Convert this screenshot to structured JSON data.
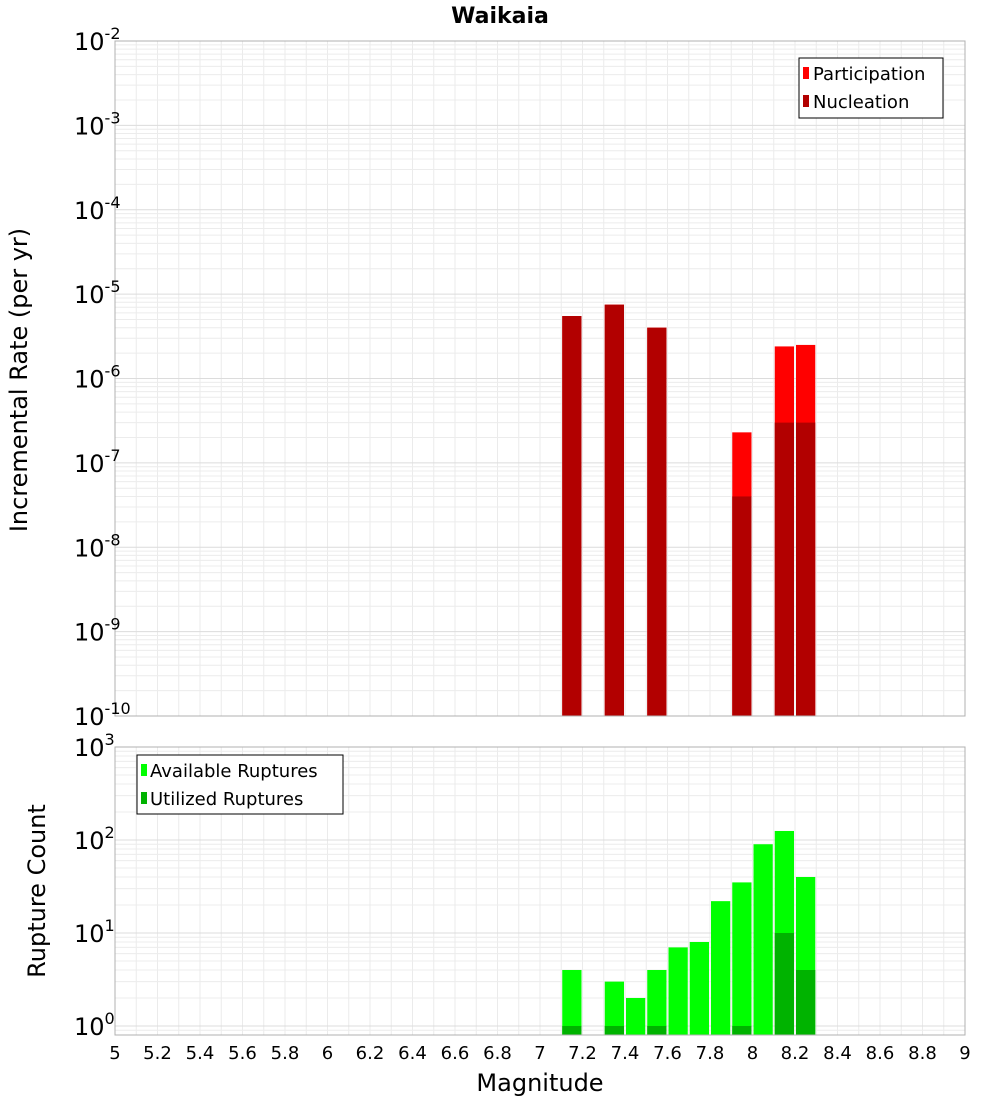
{
  "chart_data": [
    {
      "type": "bar",
      "title": "Waikaia",
      "xlabel": "Magnitude",
      "ylabel": "Incremental Rate (per yr)",
      "yscale": "log",
      "xlim": [
        5,
        9
      ],
      "ylim": [
        1e-10,
        0.01
      ],
      "ytick_base": "10",
      "ytick_exponents": [
        "-10",
        "-9",
        "-8",
        "-7",
        "-6",
        "-5",
        "-4",
        "-3",
        "-2"
      ],
      "grid": true,
      "legend_position": "top-right",
      "colors": {
        "Participation": "#ff0000",
        "Nucleation": "#b20000"
      },
      "x": [
        7.15,
        7.35,
        7.55,
        7.95,
        8.15,
        8.25
      ],
      "series": [
        {
          "name": "Participation",
          "values": [
            5.5e-06,
            7.5e-06,
            4e-06,
            2.3e-07,
            2.4e-06,
            2.5e-06
          ]
        },
        {
          "name": "Nucleation",
          "values": [
            5.5e-06,
            7.5e-06,
            4e-06,
            4e-08,
            3e-07,
            3e-07
          ]
        }
      ]
    },
    {
      "type": "bar",
      "xlabel": "Magnitude",
      "ylabel": "Rupture Count",
      "yscale": "log",
      "xlim": [
        5,
        9
      ],
      "ylim": [
        0.8,
        1000
      ],
      "ytick_base": "10",
      "ytick_exponents": [
        "0",
        "1",
        "2",
        "3"
      ],
      "xticks": [
        "5",
        "5.2",
        "5.4",
        "5.6",
        "5.8",
        "6",
        "6.2",
        "6.4",
        "6.6",
        "6.8",
        "7",
        "7.2",
        "7.4",
        "7.6",
        "7.8",
        "8",
        "8.2",
        "8.4",
        "8.6",
        "8.8",
        "9"
      ],
      "grid": true,
      "legend_position": "top-left",
      "colors": {
        "Available Ruptures": "#00ff00",
        "Utilized Ruptures": "#00b300"
      },
      "x": [
        7.15,
        7.35,
        7.45,
        7.55,
        7.65,
        7.75,
        7.85,
        7.95,
        8.05,
        8.15,
        8.25
      ],
      "series": [
        {
          "name": "Available Ruptures",
          "values": [
            4,
            3,
            2,
            4,
            7,
            8,
            22,
            35,
            90,
            125,
            40
          ]
        },
        {
          "name": "Utilized Ruptures",
          "values": [
            1,
            1,
            0,
            1,
            0,
            0,
            0,
            1,
            0,
            10,
            4
          ]
        }
      ]
    }
  ]
}
